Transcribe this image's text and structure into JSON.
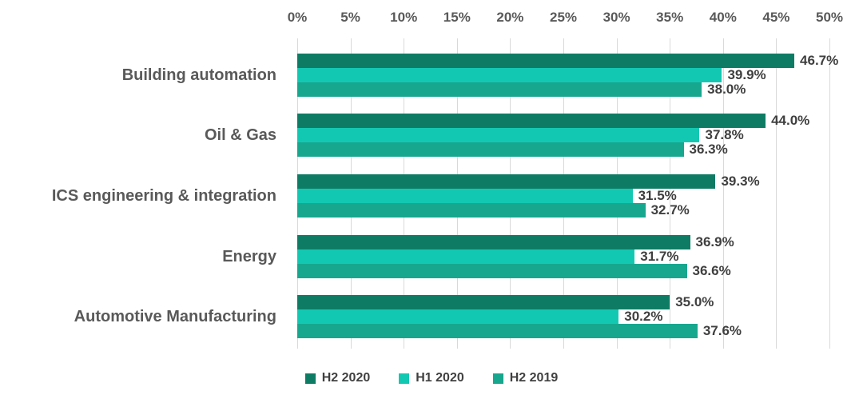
{
  "chart_data": {
    "type": "bar",
    "orientation": "horizontal",
    "categories": [
      "Building automation",
      "Oil & Gas",
      "ICS engineering & integration",
      "Energy",
      "Automotive Manufacturing"
    ],
    "series": [
      {
        "name": "H2 2020",
        "color": "#0e7c64",
        "values": [
          46.7,
          44.0,
          39.3,
          36.9,
          35.0
        ],
        "labels": [
          "46.7%",
          "44.0%",
          "39.3%",
          "36.9%",
          "35.0%"
        ]
      },
      {
        "name": "H1 2020",
        "color": "#13c8b2",
        "values": [
          39.9,
          37.8,
          31.5,
          31.7,
          30.2
        ],
        "labels": [
          "39.9%",
          "37.8%",
          "31.5%",
          "31.7%",
          "30.2%"
        ]
      },
      {
        "name": "H2 2019",
        "color": "#17a78e",
        "values": [
          38.0,
          36.3,
          32.7,
          36.6,
          37.6
        ],
        "labels": [
          "38.0%",
          "36.3%",
          "32.7%",
          "36.6%",
          "37.6%"
        ]
      }
    ],
    "x_axis": {
      "min": 0,
      "max": 50,
      "tick_labels": [
        "0%",
        "5%",
        "10%",
        "15%",
        "20%",
        "25%",
        "30%",
        "35%",
        "40%",
        "45%",
        "50%"
      ]
    },
    "legend": {
      "position": "bottom",
      "entries": [
        "H2 2020",
        "H1 2020",
        "H2 2019"
      ]
    },
    "grid": true,
    "colors": {
      "grid": "#d9d9d9",
      "axis_text": "#595959",
      "category_text": "#595959",
      "value_text": "#3f3f3f",
      "legend_text": "#404040",
      "background": "#ffffff"
    }
  }
}
